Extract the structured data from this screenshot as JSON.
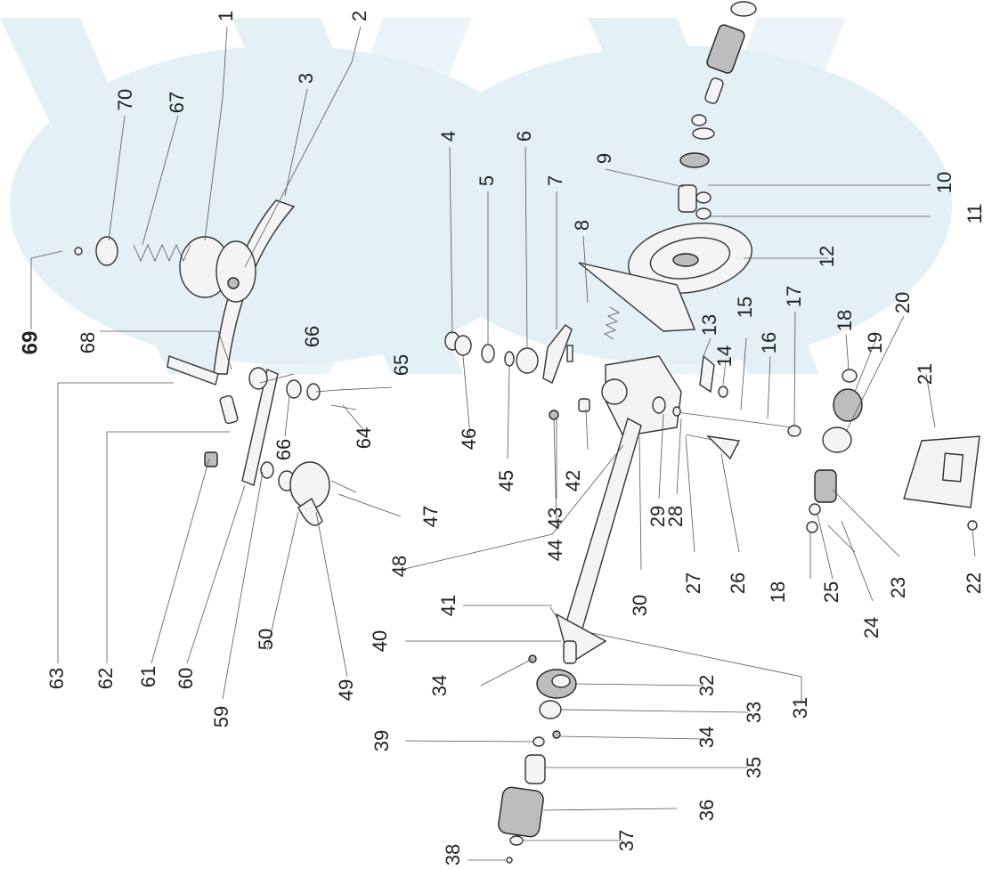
{
  "diagram": {
    "watermark_color": "#e3f1f6",
    "ink_color": "#222222",
    "callouts": [
      "1",
      "2",
      "3",
      "4",
      "5",
      "6",
      "7",
      "8",
      "9",
      "10",
      "11",
      "12",
      "13",
      "14",
      "15",
      "16",
      "17",
      "18",
      "19",
      "20",
      "21",
      "18",
      "22",
      "23",
      "24",
      "25",
      "26",
      "27",
      "28",
      "29",
      "30",
      "31",
      "32",
      "33",
      "34",
      "34",
      "35",
      "36",
      "37",
      "38",
      "39",
      "40",
      "41",
      "42",
      "43",
      "44",
      "45",
      "46",
      "47",
      "48",
      "49",
      "50",
      "59",
      "60",
      "61",
      "62",
      "63",
      "64",
      "65",
      "66",
      "66",
      "67",
      "68",
      "69",
      "70"
    ]
  }
}
